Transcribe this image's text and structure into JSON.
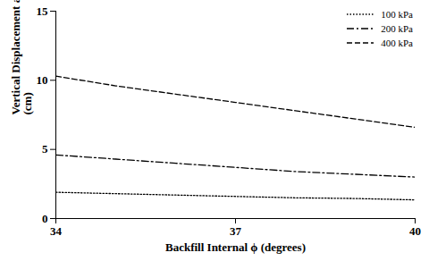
{
  "chart_data": {
    "type": "line",
    "x_label": "Backfill Internal ϕ (degrees)",
    "y_label": "Vertical Displacement at Seat\n(cm)",
    "x": [
      34,
      35,
      36,
      37,
      38,
      39,
      40
    ],
    "series": [
      {
        "name": "100 kPa",
        "color": "#000000",
        "line_style": "dotted",
        "values": [
          1.9,
          1.8,
          1.7,
          1.6,
          1.5,
          1.45,
          1.35
        ]
      },
      {
        "name": "200 kPa",
        "color": "#000000",
        "line_style": "dashdot",
        "values": [
          4.6,
          4.3,
          4.0,
          3.7,
          3.4,
          3.2,
          3.0
        ]
      },
      {
        "name": "400 kPa",
        "color": "#000000",
        "line_style": "dashed",
        "values": [
          10.3,
          9.6,
          9.0,
          8.4,
          7.8,
          7.2,
          6.6
        ]
      }
    ],
    "xlim": [
      34,
      40
    ],
    "xticks": [
      34,
      37,
      40
    ],
    "ylim": [
      0,
      15
    ],
    "yticks": [
      0,
      5,
      10,
      15
    ],
    "grid": false,
    "legend": "top-right"
  }
}
